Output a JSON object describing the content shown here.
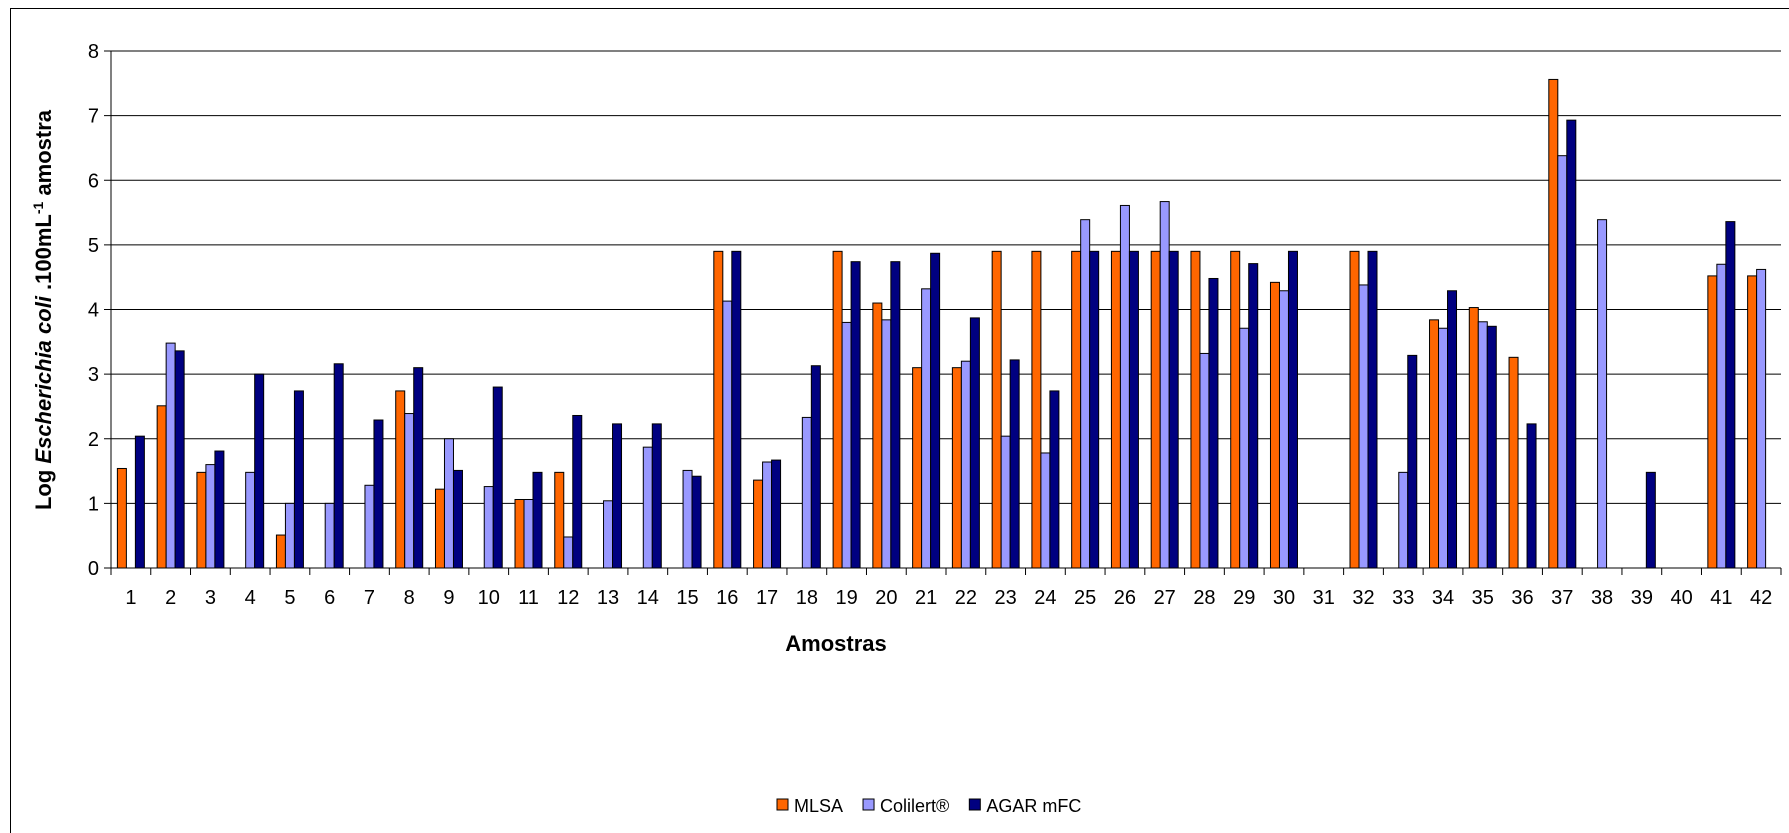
{
  "chart_data": {
    "type": "bar",
    "xlabel": "Amostras",
    "ylabel": {
      "prefix": "Log ",
      "organism": "Escherichia coli",
      "unit_base": " .100mL",
      "unit_exp": "-1",
      "suffix": " amostra"
    },
    "ylim": [
      0,
      8
    ],
    "yticks": [
      "0",
      "1",
      "2",
      "3",
      "4",
      "5",
      "6",
      "7",
      "8"
    ],
    "grid": true,
    "legend_position": "bottom-center",
    "categories": [
      "1",
      "2",
      "3",
      "4",
      "5",
      "6",
      "7",
      "8",
      "9",
      "10",
      "11",
      "12",
      "13",
      "14",
      "15",
      "16",
      "17",
      "18",
      "19",
      "20",
      "21",
      "22",
      "23",
      "24",
      "25",
      "26",
      "27",
      "28",
      "29",
      "30",
      "31",
      "32",
      "33",
      "34",
      "35",
      "36",
      "37",
      "38",
      "39",
      "40",
      "41",
      "42"
    ],
    "series": [
      {
        "name": "MLSA",
        "color": "#FF6600",
        "values": [
          1.54,
          2.51,
          1.48,
          0,
          0.51,
          0,
          0,
          2.74,
          1.22,
          0,
          1.06,
          1.48,
          0,
          0,
          0,
          4.9,
          1.36,
          0,
          4.9,
          4.1,
          3.1,
          3.1,
          4.9,
          4.9,
          4.9,
          4.9,
          4.9,
          4.9,
          4.9,
          4.42,
          0,
          4.9,
          0,
          3.84,
          4.03,
          3.26,
          7.56,
          0,
          0,
          0,
          4.52,
          4.52
        ]
      },
      {
        "name": "Colilert®",
        "color": "#9999FF",
        "values": [
          0,
          3.48,
          1.6,
          1.48,
          1.0,
          1.0,
          1.28,
          2.39,
          2.0,
          1.26,
          1.06,
          0.48,
          1.04,
          1.87,
          1.51,
          4.13,
          1.64,
          2.33,
          3.8,
          3.84,
          4.32,
          3.2,
          2.04,
          1.78,
          5.39,
          5.61,
          5.67,
          3.32,
          3.71,
          4.29,
          0,
          4.38,
          1.48,
          3.71,
          3.81,
          0,
          6.38,
          5.39,
          0,
          0,
          4.7,
          4.62
        ]
      },
      {
        "name": "AGAR mFC",
        "color": "#000080",
        "values": [
          2.04,
          3.36,
          1.81,
          3.0,
          2.74,
          3.16,
          2.29,
          3.1,
          1.51,
          2.8,
          1.48,
          2.36,
          2.23,
          2.23,
          1.42,
          4.9,
          1.67,
          3.13,
          4.74,
          4.74,
          4.87,
          3.87,
          3.22,
          2.74,
          4.9,
          4.9,
          4.9,
          4.48,
          4.71,
          4.9,
          0,
          4.9,
          3.29,
          4.29,
          3.74,
          2.23,
          6.93,
          0,
          1.48,
          0,
          5.36,
          0
        ]
      }
    ]
  }
}
